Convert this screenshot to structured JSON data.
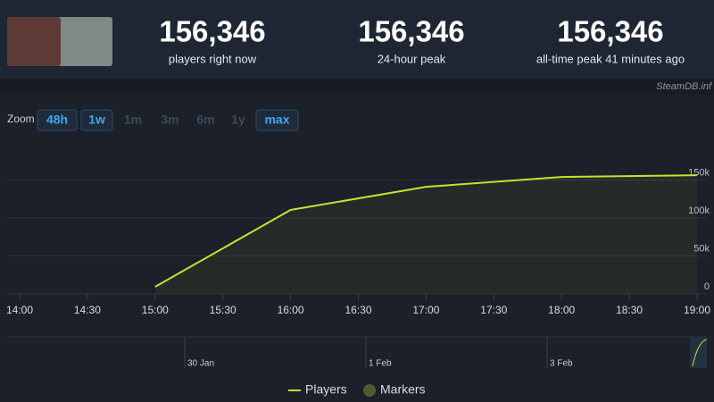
{
  "header": {
    "stats": [
      {
        "value": "156,346",
        "label": "players right now"
      },
      {
        "value": "156,346",
        "label": "24-hour peak"
      },
      {
        "value": "156,346",
        "label": "all-time peak 41 minutes ago"
      }
    ]
  },
  "watermark": "SteamDB.inf",
  "zoom": {
    "label": "Zoom",
    "buttons": [
      {
        "text": "48h",
        "enabled": true
      },
      {
        "text": "1w",
        "enabled": true
      },
      {
        "text": "1m",
        "enabled": false
      },
      {
        "text": "3m",
        "enabled": false
      },
      {
        "text": "6m",
        "enabled": false
      },
      {
        "text": "1y",
        "enabled": false
      },
      {
        "text": "max",
        "enabled": true
      }
    ]
  },
  "chart_data": {
    "type": "line",
    "x": [
      "15:00",
      "16:00",
      "17:00",
      "18:00",
      "19:00"
    ],
    "series": [
      {
        "name": "Players",
        "color": "#c6e32f",
        "values": [
          9400,
          110600,
          141000,
          154000,
          156346
        ]
      }
    ],
    "markers": {
      "name": "Markers",
      "color": "#4e5e32"
    },
    "xlim": [
      "14:00",
      "19:00"
    ],
    "xticks": [
      "14:00",
      "14:30",
      "15:00",
      "15:30",
      "16:00",
      "16:30",
      "17:00",
      "17:30",
      "18:00",
      "18:30",
      "19:00"
    ],
    "ylim": [
      0,
      200000
    ],
    "yticks": [
      0,
      {
        "value": 50000,
        "label": "50k"
      },
      {
        "value": 100000,
        "label": "100k"
      },
      {
        "value": 150000,
        "label": "150k"
      }
    ],
    "grid": true,
    "area": true
  },
  "navigator": {
    "labels": [
      "30 Jan",
      "1 Feb",
      "3 Feb"
    ]
  }
}
